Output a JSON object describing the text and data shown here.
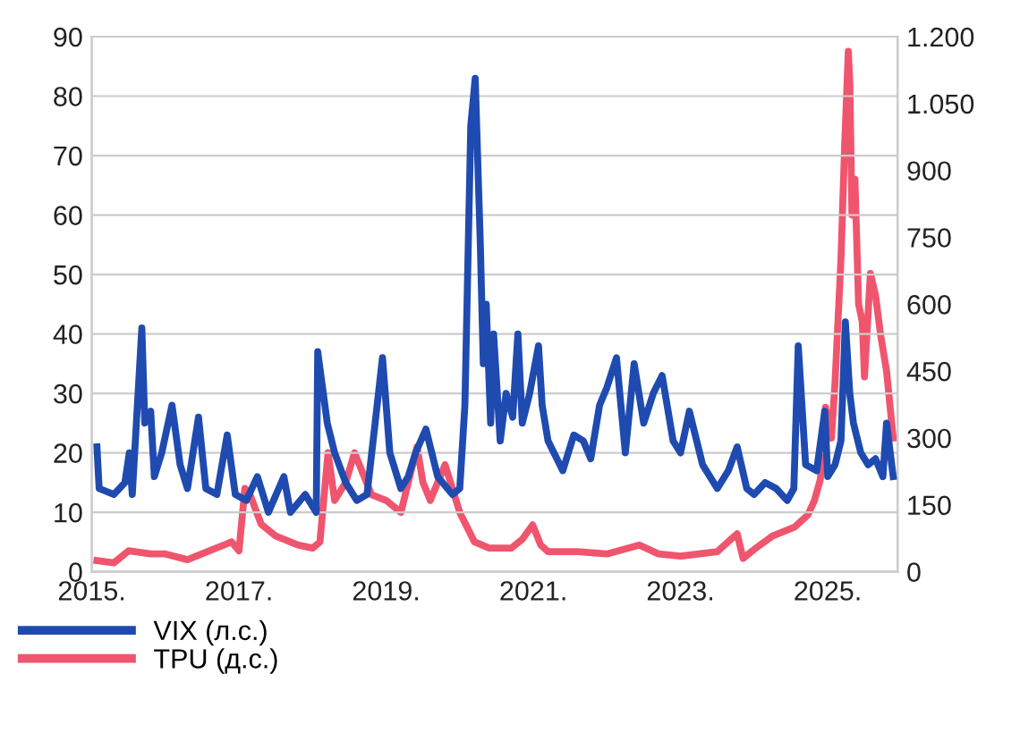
{
  "chart_data": {
    "type": "line",
    "xlim": [
      2015,
      2025.95
    ],
    "xticks": [
      {
        "value": 2015,
        "label": "2015."
      },
      {
        "value": 2017,
        "label": "2017."
      },
      {
        "value": 2019,
        "label": "2019."
      },
      {
        "value": 2021,
        "label": "2021."
      },
      {
        "value": 2023,
        "label": "2023."
      },
      {
        "value": 2025,
        "label": "2025."
      }
    ],
    "ylim": [
      0,
      90
    ],
    "yticks": [
      0,
      10,
      20,
      30,
      40,
      50,
      60,
      70,
      80,
      90
    ],
    "y2lim": [
      0,
      1200
    ],
    "y2ticks": [
      0,
      150,
      300,
      450,
      600,
      750,
      900,
      {
        "value": 1050,
        "label": "1.050"
      },
      {
        "value": 1200,
        "label": "1.200"
      }
    ],
    "grid": "y",
    "legend": "bottom left",
    "line_style": "solid",
    "marker": "none",
    "series": [
      {
        "name": "VIX (л.с.)",
        "color": "#1f4bb0",
        "axis": "y",
        "x": [
          2015.07,
          2015.1,
          2015.3,
          2015.45,
          2015.51,
          2015.55,
          2015.68,
          2015.72,
          2015.8,
          2015.85,
          2015.95,
          2016.09,
          2016.2,
          2016.3,
          2016.45,
          2016.55,
          2016.7,
          2016.84,
          2016.95,
          2017.1,
          2017.25,
          2017.4,
          2017.61,
          2017.7,
          2017.9,
          2018.05,
          2018.07,
          2018.2,
          2018.3,
          2018.45,
          2018.6,
          2018.74,
          2018.85,
          2018.95,
          2019.05,
          2019.2,
          2019.3,
          2019.4,
          2019.54,
          2019.7,
          2019.9,
          2020.0,
          2020.07,
          2020.15,
          2020.21,
          2020.28,
          2020.32,
          2020.36,
          2020.42,
          2020.46,
          2020.55,
          2020.63,
          2020.72,
          2020.79,
          2020.85,
          2020.95,
          2021.07,
          2021.12,
          2021.2,
          2021.4,
          2021.55,
          2021.68,
          2021.78,
          2021.9,
          2022.0,
          2022.13,
          2022.25,
          2022.37,
          2022.5,
          2022.63,
          2022.75,
          2022.9,
          2023.0,
          2023.12,
          2023.3,
          2023.5,
          2023.65,
          2023.77,
          2023.9,
          2024.0,
          2024.15,
          2024.3,
          2024.45,
          2024.54,
          2024.6,
          2024.7,
          2024.85,
          2024.96,
          2025.0,
          2025.1,
          2025.18,
          2025.24,
          2025.3,
          2025.35,
          2025.45,
          2025.55,
          2025.65,
          2025.75,
          2025.8,
          2025.89
        ],
        "values": [
          21,
          14,
          13,
          15,
          20,
          13,
          41,
          25,
          27,
          16,
          20,
          28,
          18,
          14,
          26,
          14,
          13,
          23,
          13,
          12,
          16,
          10,
          16,
          10,
          13,
          10,
          37,
          25,
          20,
          15,
          12,
          13,
          25,
          36,
          20,
          14,
          16,
          20,
          24,
          16,
          13,
          14,
          28,
          75,
          83,
          55,
          35,
          45,
          25,
          40,
          22,
          30,
          26,
          40,
          25,
          30,
          38,
          28,
          22,
          17,
          23,
          22,
          19,
          28,
          31,
          36,
          20,
          35,
          25,
          30,
          33,
          22,
          20,
          27,
          18,
          14,
          17,
          21,
          14,
          13,
          15,
          14,
          12,
          14,
          38,
          18,
          17,
          27,
          16,
          18,
          22,
          42,
          30,
          25,
          20,
          18,
          19,
          16,
          25,
          16
        ]
      },
      {
        "name": "TPU (д.с.)",
        "color": "#f0556e",
        "axis": "y2",
        "x": [
          2015.07,
          2015.3,
          2015.5,
          2015.8,
          2016.0,
          2016.3,
          2016.6,
          2016.9,
          2017.0,
          2017.08,
          2017.15,
          2017.3,
          2017.5,
          2017.8,
          2018.0,
          2018.1,
          2018.21,
          2018.3,
          2018.45,
          2018.57,
          2018.8,
          2019.0,
          2019.2,
          2019.42,
          2019.5,
          2019.6,
          2019.8,
          2020.0,
          2020.2,
          2020.4,
          2020.7,
          2020.85,
          2020.99,
          2021.1,
          2021.2,
          2021.6,
          2022.0,
          2022.44,
          2022.7,
          2023.0,
          2023.5,
          2023.7,
          2023.77,
          2023.85,
          2024.0,
          2024.25,
          2024.55,
          2024.73,
          2024.82,
          2024.9,
          2024.97,
          2025.05,
          2025.1,
          2025.18,
          2025.23,
          2025.28,
          2025.3,
          2025.33,
          2025.37,
          2025.42,
          2025.47,
          2025.5,
          2025.58,
          2025.65,
          2025.72,
          2025.8,
          2025.89
        ],
        "values": [
          25,
          20,
          47,
          40,
          40,
          27,
          47,
          67,
          47,
          187,
          173,
          107,
          80,
          60,
          53,
          67,
          267,
          160,
          200,
          267,
          173,
          160,
          133,
          280,
          200,
          160,
          240,
          133,
          67,
          53,
          53,
          73,
          105,
          60,
          45,
          45,
          40,
          60,
          40,
          35,
          45,
          75,
          85,
          30,
          50,
          80,
          100,
          127,
          160,
          207,
          369,
          300,
          425,
          700,
          952,
          1167,
          1100,
          800,
          880,
          600,
          560,
          437,
          669,
          620,
          530,
          450,
          300
        ]
      }
    ]
  }
}
